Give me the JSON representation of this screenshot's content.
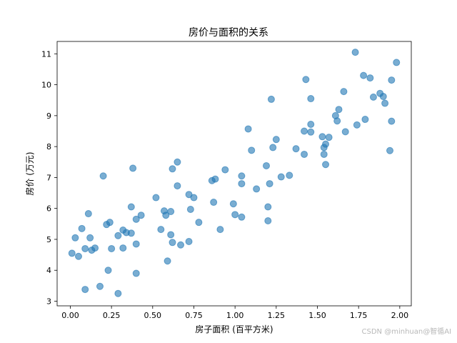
{
  "chart_data": {
    "type": "scatter",
    "title": "房价与面积的关系",
    "xlabel": "房子面积 (百平方米)",
    "ylabel": "房价 (万元)",
    "xlim": [
      -0.08,
      2.07
    ],
    "ylim": [
      2.85,
      11.4
    ],
    "xticks": [
      "0.00",
      "0.25",
      "0.50",
      "0.75",
      "1.00",
      "1.25",
      "1.50",
      "1.75",
      "2.00"
    ],
    "xtick_values": [
      0,
      0.25,
      0.5,
      0.75,
      1.0,
      1.25,
      1.5,
      1.75,
      2.0
    ],
    "yticks": [
      "3",
      "4",
      "5",
      "6",
      "7",
      "8",
      "9",
      "10",
      "11"
    ],
    "ytick_values": [
      3,
      4,
      5,
      6,
      7,
      8,
      9,
      10,
      11
    ],
    "grid": false,
    "legend": "none",
    "point_color": "#1f77b4",
    "point_alpha": 0.6,
    "points": [
      [
        0.01,
        4.55
      ],
      [
        0.03,
        5.05
      ],
      [
        0.05,
        4.45
      ],
      [
        0.07,
        5.35
      ],
      [
        0.09,
        4.7
      ],
      [
        0.09,
        3.38
      ],
      [
        0.11,
        5.83
      ],
      [
        0.12,
        5.05
      ],
      [
        0.13,
        4.65
      ],
      [
        0.15,
        4.72
      ],
      [
        0.18,
        3.48
      ],
      [
        0.2,
        7.05
      ],
      [
        0.22,
        5.48
      ],
      [
        0.24,
        5.55
      ],
      [
        0.23,
        4.0
      ],
      [
        0.25,
        4.7
      ],
      [
        0.29,
        5.12
      ],
      [
        0.29,
        3.25
      ],
      [
        0.32,
        5.3
      ],
      [
        0.32,
        4.72
      ],
      [
        0.34,
        5.22
      ],
      [
        0.37,
        6.05
      ],
      [
        0.37,
        5.2
      ],
      [
        0.38,
        7.3
      ],
      [
        0.4,
        5.65
      ],
      [
        0.4,
        3.9
      ],
      [
        0.4,
        4.85
      ],
      [
        0.43,
        5.78
      ],
      [
        0.52,
        6.35
      ],
      [
        0.55,
        5.32
      ],
      [
        0.57,
        5.92
      ],
      [
        0.58,
        5.78
      ],
      [
        0.59,
        4.3
      ],
      [
        0.61,
        5.9
      ],
      [
        0.61,
        5.15
      ],
      [
        0.62,
        4.9
      ],
      [
        0.62,
        7.28
      ],
      [
        0.65,
        6.73
      ],
      [
        0.65,
        7.5
      ],
      [
        0.67,
        4.82
      ],
      [
        0.72,
        4.93
      ],
      [
        0.72,
        6.45
      ],
      [
        0.73,
        5.97
      ],
      [
        0.75,
        6.35
      ],
      [
        0.78,
        5.55
      ],
      [
        0.86,
        6.9
      ],
      [
        0.87,
        6.2
      ],
      [
        0.88,
        6.95
      ],
      [
        0.91,
        5.32
      ],
      [
        0.94,
        7.25
      ],
      [
        0.99,
        6.15
      ],
      [
        1.0,
        5.8
      ],
      [
        1.04,
        7.05
      ],
      [
        1.04,
        6.8
      ],
      [
        1.04,
        5.72
      ],
      [
        1.08,
        8.57
      ],
      [
        1.1,
        7.88
      ],
      [
        1.13,
        6.63
      ],
      [
        1.19,
        7.38
      ],
      [
        1.2,
        6.05
      ],
      [
        1.2,
        5.6
      ],
      [
        1.21,
        6.8
      ],
      [
        1.22,
        9.53
      ],
      [
        1.23,
        7.97
      ],
      [
        1.25,
        8.23
      ],
      [
        1.28,
        7.02
      ],
      [
        1.33,
        7.07
      ],
      [
        1.37,
        7.93
      ],
      [
        1.42,
        8.5
      ],
      [
        1.42,
        7.75
      ],
      [
        1.43,
        10.17
      ],
      [
        1.46,
        8.72
      ],
      [
        1.46,
        9.55
      ],
      [
        1.46,
        8.47
      ],
      [
        1.53,
        8.32
      ],
      [
        1.54,
        7.97
      ],
      [
        1.54,
        7.75
      ],
      [
        1.55,
        8.08
      ],
      [
        1.55,
        7.42
      ],
      [
        1.57,
        8.3
      ],
      [
        1.61,
        9.0
      ],
      [
        1.62,
        8.83
      ],
      [
        1.63,
        9.2
      ],
      [
        1.66,
        9.78
      ],
      [
        1.67,
        8.48
      ],
      [
        1.73,
        11.05
      ],
      [
        1.74,
        8.7
      ],
      [
        1.78,
        10.3
      ],
      [
        1.79,
        8.88
      ],
      [
        1.82,
        10.22
      ],
      [
        1.84,
        9.6
      ],
      [
        1.88,
        9.72
      ],
      [
        1.9,
        9.62
      ],
      [
        1.91,
        9.4
      ],
      [
        1.94,
        7.87
      ],
      [
        1.95,
        10.15
      ],
      [
        1.95,
        8.82
      ],
      [
        1.98,
        10.72
      ]
    ]
  },
  "watermark": "CSDN @minhuan@智循AI"
}
